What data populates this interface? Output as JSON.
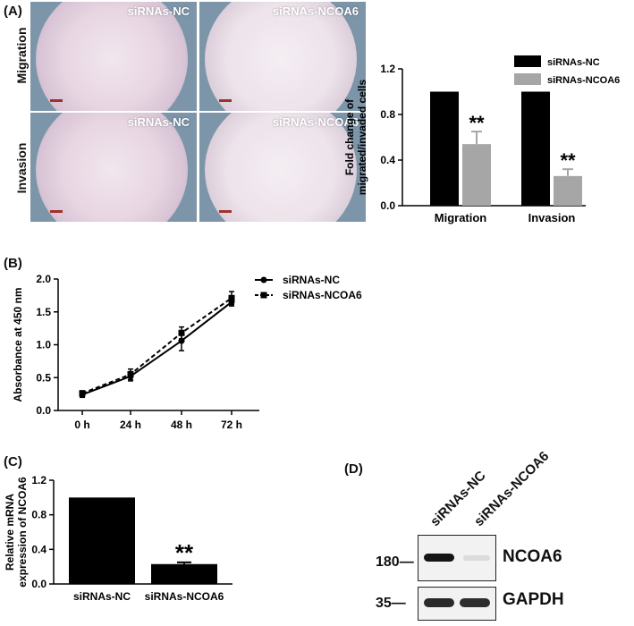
{
  "panels": {
    "a": {
      "letter": "(A)"
    },
    "b": {
      "letter": "(B)"
    },
    "c": {
      "letter": "(C)"
    },
    "d": {
      "letter": "(D)"
    }
  },
  "micrographs": {
    "row_labels": [
      "Migration",
      "Invasion"
    ],
    "captions": [
      "siRNAs-NC",
      "siRNAs-NCOA6",
      "siRNAs-NC",
      "siRNAs-NCOA6"
    ]
  },
  "chart_data": [
    {
      "id": "A",
      "type": "bar",
      "categories": [
        "Migration",
        "Invasion"
      ],
      "series": [
        {
          "name": "siRNAs-NC",
          "color": "#000000",
          "values": [
            1.0,
            1.0
          ],
          "errors": [
            0,
            0
          ]
        },
        {
          "name": "siRNAs-NCOA6",
          "color": "#a6a6a6",
          "values": [
            0.54,
            0.26
          ],
          "errors": [
            0.11,
            0.06
          ]
        }
      ],
      "significance": [
        "**",
        "**"
      ],
      "ylabel": "Fold change of migrated/invaded cells",
      "ylim": [
        0,
        1.2
      ],
      "yticks": [
        "0.0",
        "0.4",
        "0.8",
        "1.2"
      ],
      "legend": "top-right",
      "grid": false
    },
    {
      "id": "B",
      "type": "line",
      "x": [
        "0 h",
        "24 h",
        "48 h",
        "72 h"
      ],
      "series": [
        {
          "name": "siRNAs-NC",
          "marker": "circle",
          "dash": "solid",
          "values": [
            0.24,
            0.52,
            1.06,
            1.65
          ],
          "errors": [
            0.04,
            0.07,
            0.15,
            0.06
          ]
        },
        {
          "name": "siRNAs-NCOA6",
          "marker": "square",
          "dash": "dashed",
          "values": [
            0.26,
            0.55,
            1.18,
            1.71
          ],
          "errors": [
            0.04,
            0.08,
            0.09,
            0.1
          ]
        }
      ],
      "ylabel": "Absorbance at 450 nm",
      "ylim": [
        0,
        2.0
      ],
      "yticks": [
        "0.0",
        "0.5",
        "1.0",
        "1.5",
        "2.0"
      ],
      "legend": "top-left",
      "grid": false
    },
    {
      "id": "C",
      "type": "bar",
      "categories": [
        "siRNAs-NC",
        "siRNAs-NCOA6"
      ],
      "values": [
        1.0,
        0.23
      ],
      "errors": [
        0,
        0.02
      ],
      "significance": [
        "",
        "**"
      ],
      "ylabel": "Relative mRNA expression of NCOA6",
      "ylim": [
        0,
        1.2
      ],
      "yticks": [
        "0.0",
        "0.4",
        "0.8",
        "1.2"
      ],
      "grid": false
    }
  ],
  "blot": {
    "lanes": [
      "siRNAs-NC",
      "siRNAs-NCOA6"
    ],
    "markers": [
      "180—",
      "35—"
    ],
    "bands": [
      "NCOA6",
      "GAPDH"
    ]
  }
}
